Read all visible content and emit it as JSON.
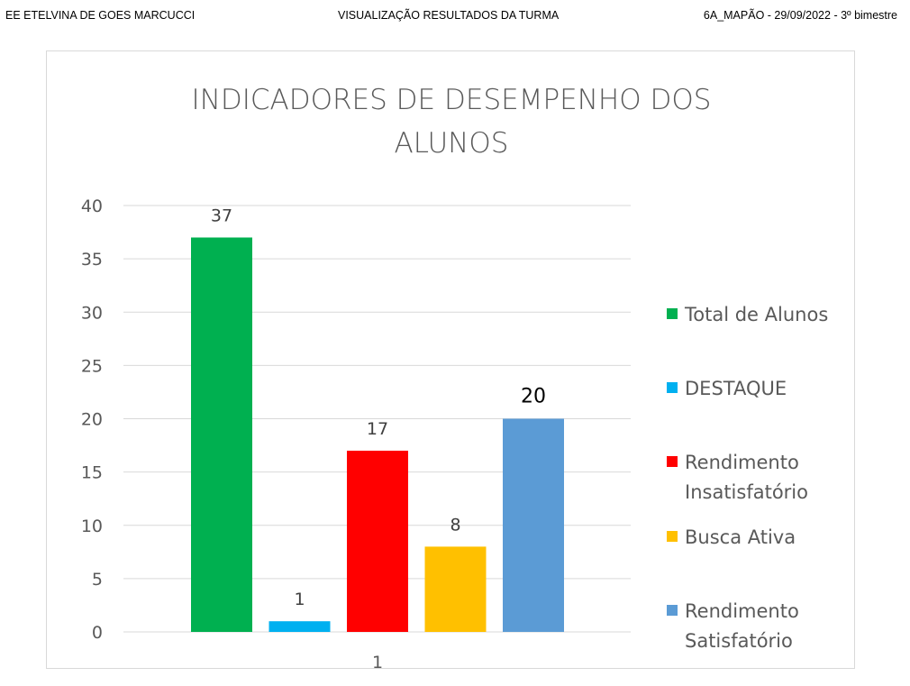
{
  "header": {
    "left": "EE ETELVINA DE GOES MARCUCCI",
    "center": "VISUALIZAÇÃO  RESULTADOS DA TURMA",
    "right": "6A_MAPÃO - 29/09/2022 - 3º bimestre"
  },
  "chart_data": {
    "type": "bar",
    "title_line1": "INDICADORES DE DESEMPENHO DOS",
    "title_line2": "ALUNOS",
    "categories": [
      "1"
    ],
    "ylim": [
      0,
      40
    ],
    "yticks": [
      0,
      5,
      10,
      15,
      20,
      25,
      30,
      35,
      40
    ],
    "grid": true,
    "legend_position": "right",
    "series": [
      {
        "name": "Total de Alunos",
        "value": 37,
        "color": "#00b050",
        "label": "37"
      },
      {
        "name": "DESTAQUE",
        "value": 1,
        "color": "#00b0f0",
        "label": "1"
      },
      {
        "name": "Rendimento Insatisfatório",
        "name_lines": [
          "Rendimento",
          "Insatisfatório"
        ],
        "value": 17,
        "color": "#ff0000",
        "label": "17"
      },
      {
        "name": "Busca Ativa",
        "value": 8,
        "color": "#ffc000",
        "label": "8"
      },
      {
        "name": "Rendimento Satisfatório",
        "name_lines": [
          "Rendimento",
          "Satisfatório"
        ],
        "value": 20,
        "color": "#5b9bd5",
        "label": "20"
      }
    ]
  }
}
